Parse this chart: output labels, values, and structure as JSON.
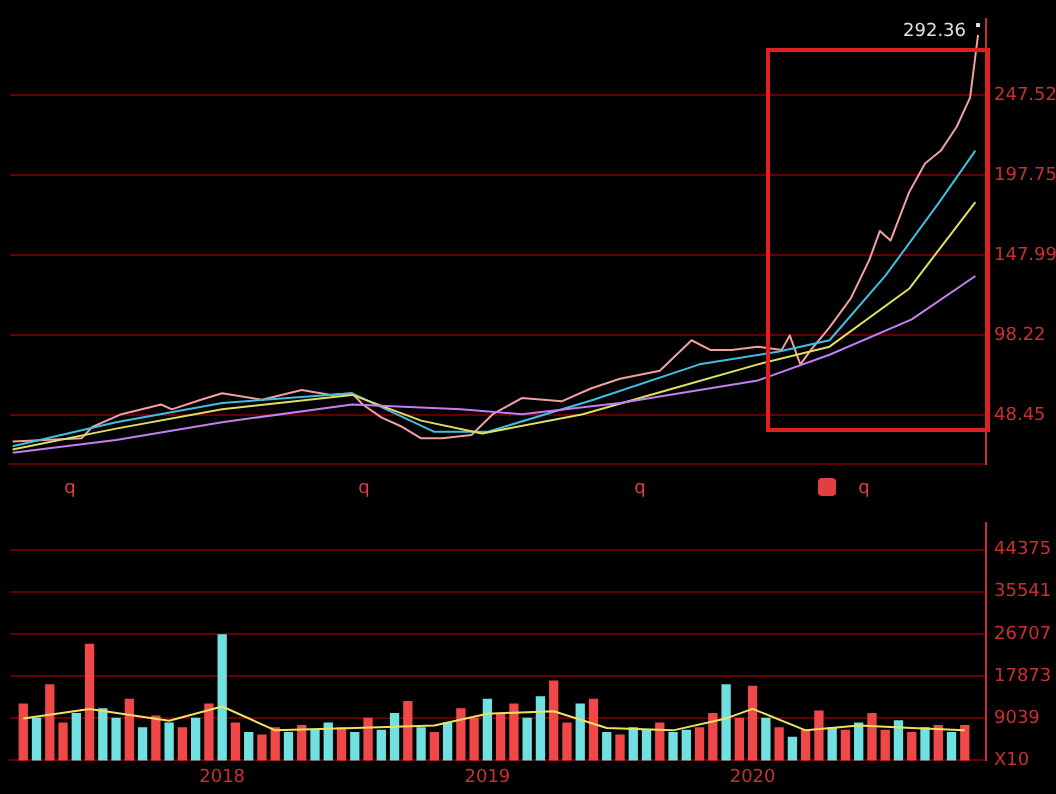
{
  "chart_data": [
    {
      "type": "line",
      "xlim": [
        2017.2,
        2020.88
      ],
      "xticks": [
        2018,
        2019,
        2020
      ],
      "ylim": [
        18,
        295
      ],
      "yticks": [
        48.45,
        98.22,
        147.99,
        197.75,
        247.52
      ],
      "grid": "y",
      "tick_labels": "y",
      "annotations": [
        {
          "text": "292.36",
          "x": 2020.85,
          "y": 292.36
        },
        "q",
        "q",
        "q",
        "q"
      ],
      "series": [
        {
          "color": "#c080f0",
          "x": [
            2017.21,
            2017.6,
            2018.0,
            2018.49,
            2018.9,
            2019.13,
            2019.5,
            2020.02,
            2020.29,
            2020.6,
            2020.84
          ],
          "values": [
            25,
            33,
            44,
            55,
            52,
            49,
            56,
            70,
            86,
            108,
            135
          ]
        },
        {
          "color": "#e0e060",
          "x": [
            2017.21,
            2017.6,
            2018.0,
            2018.49,
            2018.75,
            2018.98,
            2019.36,
            2019.7,
            2020.02,
            2020.29,
            2020.59,
            2020.84
          ],
          "values": [
            27,
            40,
            52,
            61,
            45,
            37,
            49,
            65,
            80,
            91,
            127,
            181
          ]
        },
        {
          "color": "#40c0e0",
          "x": [
            2017.21,
            2017.6,
            2018.0,
            2018.49,
            2018.8,
            2019.0,
            2019.4,
            2019.8,
            2020.1,
            2020.29,
            2020.5,
            2020.7,
            2020.84
          ],
          "values": [
            29,
            44,
            56,
            62,
            38,
            38,
            58,
            80,
            88,
            95,
            135,
            180,
            213
          ]
        },
        {
          "color": "#f0a0a0",
          "x": [
            2017.21,
            2017.47,
            2017.51,
            2017.62,
            2017.77,
            2017.81,
            2017.92,
            2018.0,
            2018.15,
            2018.3,
            2018.41,
            2018.49,
            2018.53,
            2018.6,
            2018.68,
            2018.75,
            2018.83,
            2018.94,
            2019.02,
            2019.13,
            2019.28,
            2019.39,
            2019.5,
            2019.65,
            2019.77,
            2019.84,
            2019.92,
            2020.02,
            2020.11,
            2020.14,
            2020.18,
            2020.22,
            2020.29,
            2020.37,
            2020.44,
            2020.48,
            2020.52,
            2020.59,
            2020.65,
            2020.71,
            2020.77,
            2020.82,
            2020.85
          ],
          "values": [
            32,
            34,
            41,
            49,
            55,
            52,
            58,
            62,
            58,
            64,
            61,
            62,
            55,
            47,
            41,
            34,
            34,
            36,
            49,
            59,
            57,
            65,
            71,
            76,
            95,
            89,
            89,
            91,
            89,
            98,
            80,
            89,
            103,
            121,
            145,
            163,
            157,
            187,
            205,
            213,
            228,
            246,
            285
          ]
        }
      ]
    },
    {
      "type": "bar",
      "xlim": [
        2017.2,
        2020.88
      ],
      "xticks": [
        2018,
        2019,
        2020
      ],
      "ylim": [
        205,
        50000
      ],
      "yticks": [
        {
          "value": 205,
          "label": "X10"
        },
        9039,
        17873,
        26707,
        35541,
        44375
      ],
      "grid": "y",
      "series": [
        {
          "x": [
            2017.25,
            2017.3,
            2017.35,
            2017.4,
            2017.45,
            2017.5,
            2017.55,
            2017.6,
            2017.65,
            2017.7,
            2017.75,
            2017.8,
            2017.85,
            2017.9,
            2017.95,
            2018.0,
            2018.05,
            2018.1,
            2018.15,
            2018.2,
            2018.25,
            2018.3,
            2018.35,
            2018.4,
            2018.45,
            2018.5,
            2018.55,
            2018.6,
            2018.65,
            2018.7,
            2018.75,
            2018.8,
            2018.85,
            2018.9,
            2018.95,
            2019.0,
            2019.05,
            2019.1,
            2019.15,
            2019.2,
            2019.25,
            2019.3,
            2019.35,
            2019.4,
            2019.45,
            2019.5,
            2019.55,
            2019.6,
            2019.65,
            2019.7,
            2019.75,
            2019.8,
            2019.85,
            2019.9,
            2019.95,
            2020.0,
            2020.05,
            2020.1,
            2020.15,
            2020.2,
            2020.25,
            2020.3,
            2020.35,
            2020.4,
            2020.45,
            2020.5,
            2020.55,
            2020.6,
            2020.65,
            2020.7,
            2020.75,
            2020.8
          ],
          "values": [
            12000,
            9000,
            16000,
            8000,
            10000,
            24500,
            11000,
            9000,
            13000,
            7000,
            9500,
            8000,
            7000,
            9000,
            12000,
            26500,
            8000,
            6000,
            5500,
            7000,
            6000,
            7500,
            6500,
            8000,
            7000,
            6000,
            9000,
            6500,
            10000,
            12500,
            7000,
            6000,
            8000,
            11000,
            9000,
            13000,
            10000,
            12000,
            9000,
            13500,
            16800,
            8000,
            12000,
            13000,
            6000,
            5500,
            7000,
            6500,
            8000,
            6000,
            6500,
            7000,
            10000,
            16000,
            9000,
            15700,
            9000,
            7000,
            5000,
            6500,
            10500,
            7000,
            6500,
            8000,
            10000,
            6500,
            8500,
            6000,
            7000,
            7500,
            6000,
            7500
          ],
          "colors": [
            "#f04848",
            "#70e0e0",
            "#f04848",
            "#f04848",
            "#70e0e0",
            "#f04848",
            "#70e0e0",
            "#70e0e0",
            "#f04848",
            "#70e0e0",
            "#f04848",
            "#70e0e0",
            "#f04848",
            "#70e0e0",
            "#f04848",
            "#70e0e0",
            "#f04848",
            "#70e0e0",
            "#f04848",
            "#f04848",
            "#70e0e0",
            "#f04848",
            "#70e0e0",
            "#70e0e0",
            "#f04848",
            "#70e0e0",
            "#f04848",
            "#70e0e0",
            "#70e0e0",
            "#f04848",
            "#70e0e0",
            "#f04848",
            "#70e0e0",
            "#f04848",
            "#f04848",
            "#70e0e0",
            "#f04848",
            "#f04848",
            "#70e0e0",
            "#70e0e0",
            "#f04848",
            "#f04848",
            "#70e0e0",
            "#f04848",
            "#70e0e0",
            "#f04848",
            "#70e0e0",
            "#70e0e0",
            "#f04848",
            "#70e0e0",
            "#70e0e0",
            "#f04848",
            "#f04848",
            "#70e0e0",
            "#f04848",
            "#f04848",
            "#70e0e0",
            "#f04848",
            "#70e0e0",
            "#f04848",
            "#f04848",
            "#70e0e0",
            "#f04848",
            "#70e0e0",
            "#f04848",
            "#f04848",
            "#70e0e0",
            "#f04848",
            "#70e0e0",
            "#f04848",
            "#70e0e0",
            "#f04848"
          ]
        },
        {
          "type": "line",
          "color": "#f0e060",
          "x": [
            2017.25,
            2017.5,
            2017.8,
            2018.0,
            2018.2,
            2018.5,
            2018.8,
            2019.0,
            2019.25,
            2019.45,
            2019.7,
            2019.9,
            2020.0,
            2020.2,
            2020.4,
            2020.6,
            2020.8
          ],
          "values": [
            9000,
            11000,
            8500,
            11500,
            6500,
            7000,
            7500,
            10000,
            10500,
            7000,
            6500,
            9000,
            11000,
            6500,
            7500,
            7000,
            6500
          ]
        }
      ]
    }
  ]
}
